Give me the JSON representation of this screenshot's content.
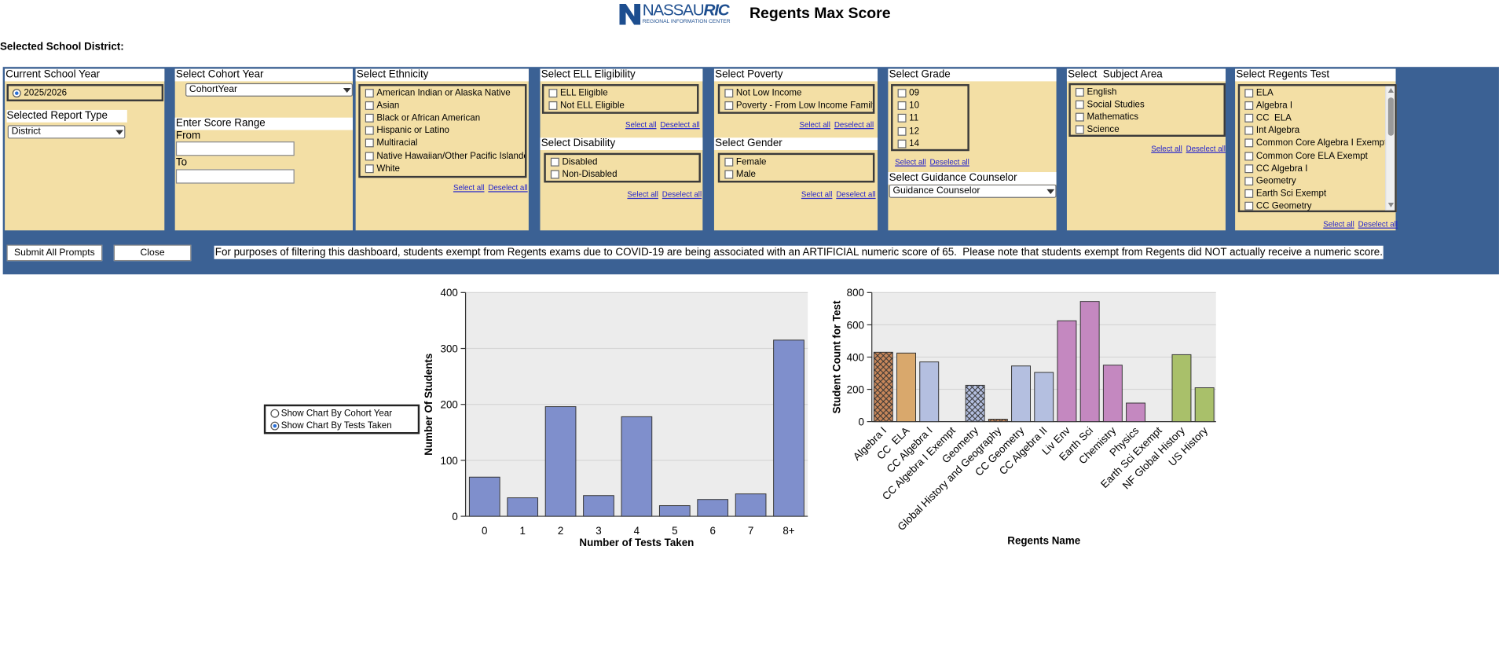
{
  "header": {
    "logo": {
      "name": "NASSAU",
      "accent": "RIC",
      "subtitle": "REGIONAL INFORMATION CENTER"
    },
    "title": "Regents Max Score"
  },
  "district_label": "Selected School District:",
  "filters": {
    "school_year": {
      "title": "Current School Year",
      "options": [
        "2025/2026"
      ]
    },
    "report_type": {
      "title": "Selected Report Type",
      "selected": "District"
    },
    "cohort_year": {
      "title": "Select Cohort Year",
      "selected": "CohortYear"
    },
    "score_range": {
      "title": "Enter Score Range",
      "from": "From",
      "to": "To"
    },
    "ethnicity": {
      "title": "Select Ethnicity",
      "options": [
        "American Indian or Alaska Native",
        "Asian",
        "Black or African American",
        "Hispanic or Latino",
        "Multiracial",
        "Native Hawaiian/Other Pacific Islander",
        "White"
      ],
      "links": [
        "Select all",
        "Deselect all"
      ]
    },
    "ell": {
      "title": "Select ELL Eligibility",
      "options": [
        "ELL Eligible",
        "Not ELL Eligible"
      ],
      "links": [
        "Select all",
        "Deselect all"
      ]
    },
    "disability": {
      "title": "Select Disability",
      "options": [
        "Disabled",
        "Non-Disabled"
      ],
      "links": [
        "Select all",
        "Deselect all"
      ]
    },
    "poverty": {
      "title": "Select Poverty",
      "options": [
        "Not Low Income",
        "Poverty - From Low Income Family"
      ],
      "links": [
        "Select all",
        "Deselect all"
      ]
    },
    "gender": {
      "title": "Select Gender",
      "options": [
        "Female",
        "Male"
      ],
      "links": [
        "Select all",
        "Deselect all"
      ]
    },
    "grade": {
      "title": "Select Grade",
      "options": [
        "09",
        "10",
        "11",
        "12",
        "14"
      ],
      "links": [
        "Select all",
        "Deselect all"
      ]
    },
    "counselor": {
      "title": "Select Guidance Counselor",
      "selected": "Guidance Counselor"
    },
    "subject": {
      "title": "Select  Subject Area",
      "options": [
        "English",
        "Social Studies",
        "Mathematics",
        "Science"
      ],
      "links": [
        "Select all",
        "Deselect all"
      ]
    },
    "regents_test": {
      "title": "Select Regents Test",
      "options": [
        "ELA",
        "Algebra I",
        "CC  ELA",
        "Int Algebra",
        "Common Core Algebra I Exempt",
        "Common Core ELA Exempt",
        "CC Algebra I",
        "Geometry",
        "Earth Sci Exempt",
        "CC Geometry"
      ],
      "links": [
        "Select all",
        "Deselect all"
      ]
    }
  },
  "buttons": [
    "Submit All Prompts",
    "Close"
  ],
  "notice": "For purposes of filtering this dashboard, students exempt from Regents exams due to COVID-19 are being associated with an ARTIFICIAL numeric score of 65.  Please note that students exempt from Regents did NOT actually receive a numeric score.",
  "chart_toggle": {
    "options": [
      "Show Chart By Cohort Year",
      "Show Chart By Tests Taken"
    ],
    "selected_index": 1
  },
  "chart_data": [
    {
      "type": "bar",
      "x_label": "Number of Tests Taken",
      "y_label": "Number Of Students",
      "categories": [
        "0",
        "1",
        "2",
        "3",
        "4",
        "5",
        "6",
        "7",
        "8+"
      ],
      "values": [
        70,
        33,
        196,
        37,
        178,
        19,
        30,
        40,
        315
      ],
      "color": "#7f8fcc",
      "ylim": [
        0,
        400
      ],
      "yticks": [
        0,
        100,
        200,
        300,
        400
      ],
      "grid": true
    },
    {
      "type": "bar",
      "x_label": "Regents Name",
      "y_label": "Student Count for Test",
      "categories": [
        "Algebra I",
        "CC  ELA",
        "CC Algebra I",
        "CC Algebra I Exempt",
        "Geometry",
        "Global History and Geography",
        "CC Geometry",
        "CC Algebra II",
        "Liv Env",
        "Earth Sci",
        "Chemistry",
        "Physics",
        "Earth Sci Exempt",
        "NF Global History",
        "US History"
      ],
      "values": [
        430,
        425,
        370,
        0,
        225,
        15,
        345,
        305,
        625,
        745,
        350,
        115,
        0,
        415,
        210
      ],
      "colors": [
        "#c8875a",
        "#d9a86c",
        "#b4bfe0",
        "#b4bfe0",
        "#b4bfe0",
        "#c8875a",
        "#b4bfe0",
        "#b4bfe0",
        "#c488c0",
        "#c488c0",
        "#c488c0",
        "#c488c0",
        "#c488c0",
        "#a9c06a",
        "#a9c06a"
      ],
      "hatched": [
        true,
        false,
        false,
        false,
        true,
        true,
        false,
        false,
        false,
        false,
        false,
        false,
        false,
        false,
        false
      ],
      "ylim": [
        0,
        800
      ],
      "yticks": [
        0,
        200,
        400,
        600,
        800
      ],
      "grid": true
    }
  ]
}
